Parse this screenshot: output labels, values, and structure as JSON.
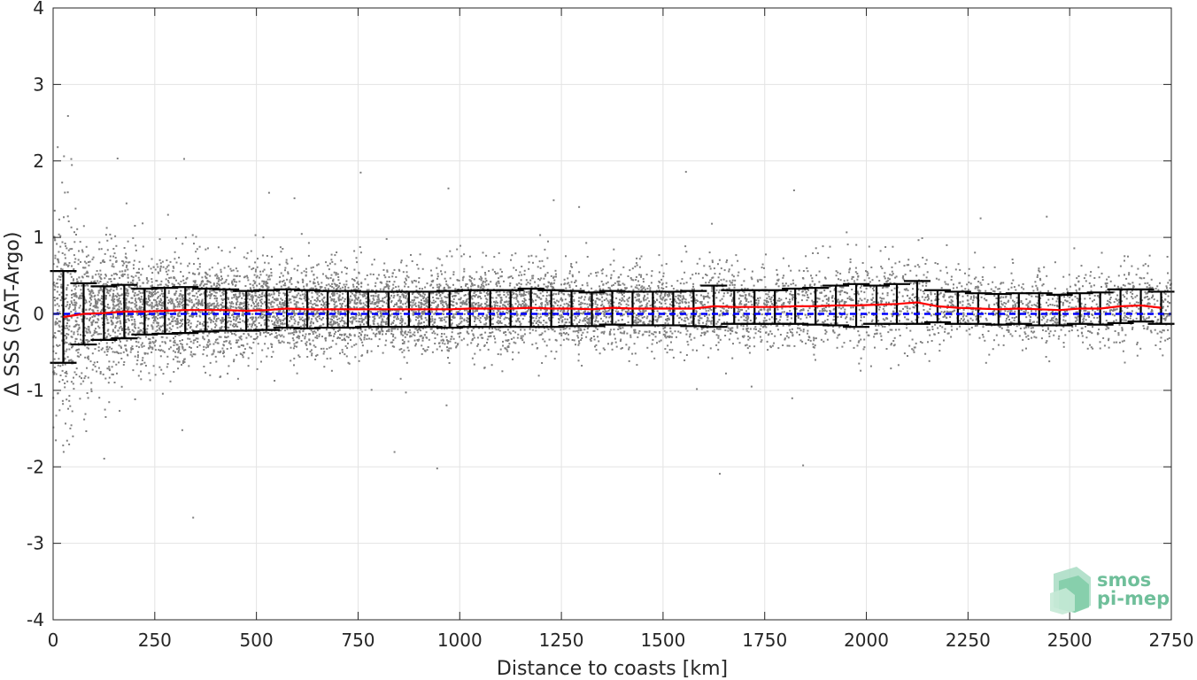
{
  "chart_data": {
    "type": "scatter",
    "title": "",
    "xlabel": "Distance to coasts [km]",
    "ylabel": "Δ SSS (SAT-Argo)",
    "xlim": [
      0,
      2750
    ],
    "ylim": [
      -4,
      4
    ],
    "xticks": [
      0,
      250,
      500,
      750,
      1000,
      1250,
      1500,
      1750,
      2000,
      2250,
      2500,
      2750
    ],
    "yticks": [
      -4,
      -3,
      -2,
      -1,
      0,
      1,
      2,
      3,
      4
    ],
    "xtick_labels": [
      "0",
      "250",
      "500",
      "750",
      "1000",
      "1250",
      "1500",
      "1750",
      "2000",
      "2250",
      "2500",
      "2750"
    ],
    "ytick_labels": [
      "-4",
      "-3",
      "-2",
      "-1",
      "0",
      "1",
      "2",
      "3",
      "4"
    ],
    "grid": true,
    "zero_line": {
      "y": 0,
      "style": "dashed",
      "color": "#0000ff"
    },
    "scatter_color": "#808080",
    "mean_line_color": "#ff0000",
    "errorbar_color": "#000000",
    "series": [
      {
        "kind": "binned-mean",
        "x": [
          25,
          75,
          125,
          175,
          225,
          275,
          325,
          375,
          425,
          475,
          525,
          575,
          625,
          675,
          725,
          775,
          825,
          875,
          925,
          975,
          1025,
          1075,
          1125,
          1175,
          1225,
          1275,
          1325,
          1375,
          1425,
          1475,
          1525,
          1575,
          1625,
          1675,
          1725,
          1775,
          1825,
          1875,
          1925,
          1975,
          2025,
          2075,
          2125,
          2175,
          2225,
          2275,
          2325,
          2375,
          2425,
          2475,
          2525,
          2575,
          2625,
          2675,
          2725
        ],
        "mean": [
          -0.04,
          0.0,
          0.01,
          0.03,
          0.03,
          0.04,
          0.05,
          0.05,
          0.05,
          0.04,
          0.05,
          0.07,
          0.06,
          0.06,
          0.06,
          0.06,
          0.06,
          0.06,
          0.06,
          0.06,
          0.07,
          0.07,
          0.07,
          0.08,
          0.07,
          0.07,
          0.06,
          0.08,
          0.07,
          0.07,
          0.07,
          0.07,
          0.1,
          0.09,
          0.09,
          0.09,
          0.1,
          0.1,
          0.11,
          0.11,
          0.12,
          0.13,
          0.15,
          0.1,
          0.08,
          0.07,
          0.06,
          0.07,
          0.06,
          0.05,
          0.07,
          0.07,
          0.1,
          0.11,
          0.08
        ],
        "std": [
          0.6,
          0.4,
          0.35,
          0.35,
          0.3,
          0.3,
          0.3,
          0.28,
          0.27,
          0.26,
          0.26,
          0.25,
          0.25,
          0.24,
          0.24,
          0.23,
          0.23,
          0.23,
          0.23,
          0.24,
          0.24,
          0.24,
          0.24,
          0.25,
          0.24,
          0.23,
          0.22,
          0.22,
          0.22,
          0.22,
          0.22,
          0.23,
          0.27,
          0.22,
          0.22,
          0.22,
          0.23,
          0.24,
          0.26,
          0.28,
          0.25,
          0.26,
          0.28,
          0.21,
          0.21,
          0.2,
          0.2,
          0.2,
          0.21,
          0.2,
          0.2,
          0.21,
          0.22,
          0.21,
          0.21
        ]
      }
    ]
  },
  "logo": {
    "line1": "smos",
    "line2": "pi-mep"
  }
}
